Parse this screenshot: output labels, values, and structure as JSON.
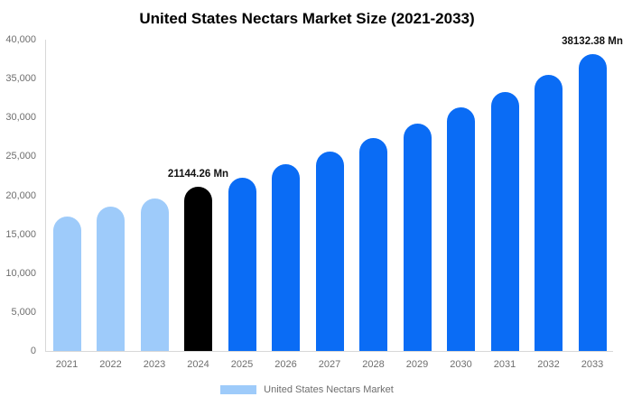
{
  "colors": {
    "historical": "#9ecbfa",
    "base_year": "#000000",
    "forecast": "#0a6cf5",
    "axis_line": "#d8d8d8",
    "tick_text": "#6e6e6e",
    "annotation_text": "#111111",
    "title_text": "#000000"
  },
  "chart_data": {
    "type": "bar",
    "title": "United States Nectars Market Size (2021-2033)",
    "xlabel": "",
    "ylabel": "",
    "ylim": [
      0,
      40000
    ],
    "grid": false,
    "categories": [
      "2021",
      "2022",
      "2023",
      "2024",
      "2025",
      "2026",
      "2027",
      "2028",
      "2029",
      "2030",
      "2031",
      "2032",
      "2033"
    ],
    "values": [
      17300,
      18550,
      19650,
      21144.26,
      22250,
      24000,
      25650,
      27360,
      29220,
      31280,
      33290,
      35500,
      38132.38
    ],
    "bar_colors": [
      "#9ecbfa",
      "#9ecbfa",
      "#9ecbfa",
      "#000000",
      "#0a6cf5",
      "#0a6cf5",
      "#0a6cf5",
      "#0a6cf5",
      "#0a6cf5",
      "#0a6cf5",
      "#0a6cf5",
      "#0a6cf5",
      "#0a6cf5"
    ],
    "annotations": [
      {
        "index": 3,
        "text": "21144.26 Mn"
      },
      {
        "index": 12,
        "text": "38132.38 Mn"
      }
    ],
    "y_ticks": {
      "values": [
        0,
        5000,
        10000,
        15000,
        20000,
        25000,
        30000,
        35000,
        40000
      ],
      "labels": [
        "0",
        "5,000",
        "10,000",
        "15,000",
        "20,000",
        "25,000",
        "30,000",
        "35,000",
        "40,000"
      ]
    },
    "legend": {
      "position": "bottom",
      "label": "United States Nectars Market",
      "swatch_color": "#9ecbfa"
    }
  }
}
